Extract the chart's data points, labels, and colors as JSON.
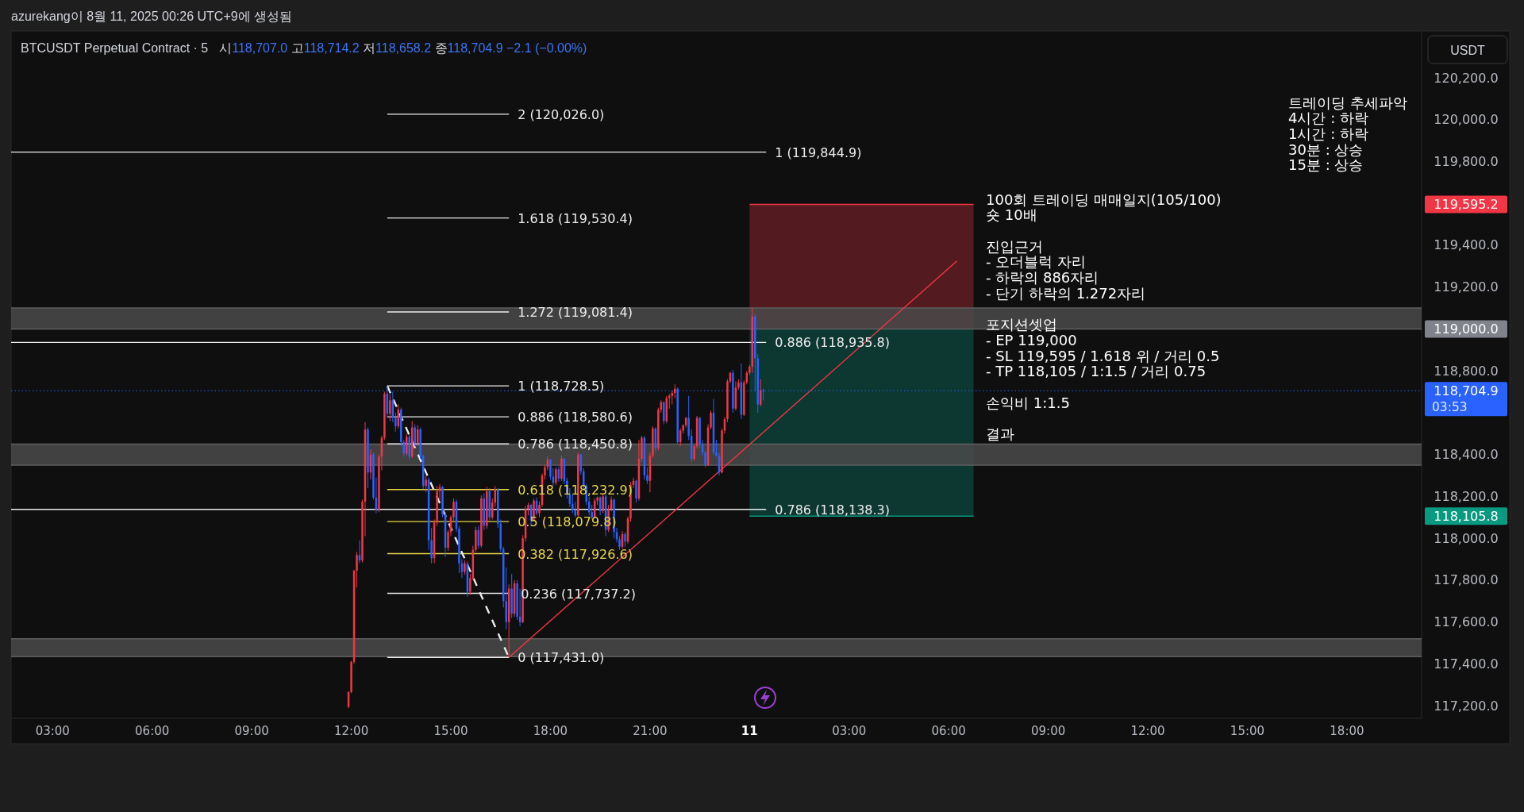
{
  "chart_data": {
    "type": "candlestick",
    "title": "BTCUSDT Perpetual Contract · 5",
    "subtitle": "시118,707.0 고118,714.2 저118,658.2 종118,704.9 −2.1 (−0.00%)",
    "ylabel": "USDT",
    "x": [
      "2025-08-10T11:55",
      "2025-08-10T12:00",
      "2025-08-10T12:05",
      "2025-08-10T12:10",
      "2025-08-10T12:15",
      "2025-08-10T12:20",
      "2025-08-10T12:25",
      "2025-08-10T12:30",
      "2025-08-10T12:35",
      "2025-08-10T12:40",
      "2025-08-10T12:45",
      "2025-08-10T12:50",
      "2025-08-10T12:55",
      "2025-08-10T13:00",
      "2025-08-10T13:05",
      "2025-08-10T13:10",
      "2025-08-10T13:15",
      "2025-08-10T13:20",
      "2025-08-10T13:25",
      "2025-08-10T13:30",
      "2025-08-10T13:35",
      "2025-08-10T13:40",
      "2025-08-10T13:45",
      "2025-08-10T13:50",
      "2025-08-10T13:55",
      "2025-08-10T14:00",
      "2025-08-10T14:05",
      "2025-08-10T14:10",
      "2025-08-10T14:15",
      "2025-08-10T14:20",
      "2025-08-10T14:25",
      "2025-08-10T14:30",
      "2025-08-10T14:35",
      "2025-08-10T14:40",
      "2025-08-10T14:45",
      "2025-08-10T14:50",
      "2025-08-10T14:55",
      "2025-08-10T15:00",
      "2025-08-10T15:05",
      "2025-08-10T15:10",
      "2025-08-10T15:15",
      "2025-08-10T15:20",
      "2025-08-10T15:25",
      "2025-08-10T15:30",
      "2025-08-10T15:35",
      "2025-08-10T15:40",
      "2025-08-10T15:45",
      "2025-08-10T15:50",
      "2025-08-10T15:55",
      "2025-08-10T16:00",
      "2025-08-10T16:05",
      "2025-08-10T16:10",
      "2025-08-10T16:15",
      "2025-08-10T16:20",
      "2025-08-10T16:25",
      "2025-08-10T16:30",
      "2025-08-10T16:35",
      "2025-08-10T16:40",
      "2025-08-10T16:45",
      "2025-08-10T16:50",
      "2025-08-10T16:55",
      "2025-08-10T17:00",
      "2025-08-10T17:05",
      "2025-08-10T17:10",
      "2025-08-10T17:15",
      "2025-08-10T17:20",
      "2025-08-10T17:25",
      "2025-08-10T17:30",
      "2025-08-10T17:35",
      "2025-08-10T17:40",
      "2025-08-10T17:45",
      "2025-08-10T17:50",
      "2025-08-10T17:55",
      "2025-08-10T18:00",
      "2025-08-10T18:05",
      "2025-08-10T18:10",
      "2025-08-10T18:15",
      "2025-08-10T18:20",
      "2025-08-10T18:25",
      "2025-08-10T18:30",
      "2025-08-10T18:35",
      "2025-08-10T18:40",
      "2025-08-10T18:45",
      "2025-08-10T18:50",
      "2025-08-10T18:55",
      "2025-08-10T19:00",
      "2025-08-10T19:05",
      "2025-08-10T19:10",
      "2025-08-10T19:15",
      "2025-08-10T19:20",
      "2025-08-10T19:25",
      "2025-08-10T19:30",
      "2025-08-10T19:35",
      "2025-08-10T19:40",
      "2025-08-10T19:45",
      "2025-08-10T19:50",
      "2025-08-10T19:55",
      "2025-08-10T20:00",
      "2025-08-10T20:05",
      "2025-08-10T20:10",
      "2025-08-10T20:15",
      "2025-08-10T20:20",
      "2025-08-10T20:25",
      "2025-08-10T20:30",
      "2025-08-10T20:35",
      "2025-08-10T20:40",
      "2025-08-10T20:45",
      "2025-08-10T20:50",
      "2025-08-10T20:55",
      "2025-08-10T21:00",
      "2025-08-10T21:05",
      "2025-08-10T21:10",
      "2025-08-10T21:15",
      "2025-08-10T21:20",
      "2025-08-10T21:25",
      "2025-08-10T21:30",
      "2025-08-10T21:35",
      "2025-08-10T21:40",
      "2025-08-10T21:45",
      "2025-08-10T21:50",
      "2025-08-10T21:55",
      "2025-08-10T22:00",
      "2025-08-10T22:05",
      "2025-08-10T22:10",
      "2025-08-10T22:15",
      "2025-08-10T22:20",
      "2025-08-10T22:25",
      "2025-08-10T22:30",
      "2025-08-10T22:35",
      "2025-08-10T22:40",
      "2025-08-10T22:45",
      "2025-08-10T22:50",
      "2025-08-10T22:55",
      "2025-08-10T23:00",
      "2025-08-10T23:05",
      "2025-08-10T23:10",
      "2025-08-10T23:15",
      "2025-08-10T23:20",
      "2025-08-10T23:25",
      "2025-08-10T23:30",
      "2025-08-10T23:35",
      "2025-08-10T23:40",
      "2025-08-10T23:45",
      "2025-08-10T23:50",
      "2025-08-10T23:55",
      "2025-08-11T00:00",
      "2025-08-11T00:05",
      "2025-08-11T00:10",
      "2025-08-11T00:15",
      "2025-08-11T00:20",
      "2025-08-11T00:25"
    ],
    "ohlc": [
      [
        117195,
        117270,
        117188,
        117265
      ],
      [
        117265,
        117415,
        117260,
        117410
      ],
      [
        117410,
        117850,
        117400,
        117845
      ],
      [
        117845,
        117935,
        117765,
        117920
      ],
      [
        117920,
        117990,
        117880,
        117895
      ],
      [
        117895,
        118185,
        117885,
        118175
      ],
      [
        118175,
        118555,
        118010,
        118520
      ],
      [
        118520,
        118530,
        118240,
        118315
      ],
      [
        118315,
        118425,
        118280,
        118400
      ],
      [
        118400,
        118410,
        118185,
        118195
      ],
      [
        118195,
        118290,
        118120,
        118135
      ],
      [
        118135,
        118400,
        118125,
        118390
      ],
      [
        118390,
        118490,
        118325,
        118480
      ],
      [
        118480,
        118700,
        118470,
        118690
      ],
      [
        118690,
        118728.5,
        118575,
        118595
      ],
      [
        118595,
        118690,
        118560,
        118660
      ],
      [
        118660,
        118700,
        118555,
        118575
      ],
      [
        118575,
        118600,
        118510,
        118535
      ],
      [
        118535,
        118640,
        118525,
        118615
      ],
      [
        118615,
        118625,
        118440,
        118460
      ],
      [
        118460,
        118470,
        118390,
        118405
      ],
      [
        118405,
        118500,
        118395,
        118485
      ],
      [
        118485,
        118495,
        118375,
        118390
      ],
      [
        118390,
        118560,
        118385,
        118530
      ],
      [
        118530,
        118545,
        118440,
        118455
      ],
      [
        118455,
        118540,
        118440,
        118520
      ],
      [
        118520,
        118530,
        118380,
        118395
      ],
      [
        118395,
        118400,
        118235,
        118250
      ],
      [
        118250,
        118300,
        118220,
        118280
      ],
      [
        118280,
        118290,
        117945,
        117990
      ],
      [
        117990,
        118050,
        117880,
        117905
      ],
      [
        117905,
        118090,
        117880,
        118075
      ],
      [
        118075,
        118250,
        118060,
        118225
      ],
      [
        118225,
        118260,
        118180,
        118245
      ],
      [
        118245,
        118250,
        118100,
        118115
      ],
      [
        118115,
        118125,
        117910,
        117955
      ],
      [
        117955,
        118040,
        117940,
        118030
      ],
      [
        118030,
        118110,
        118010,
        118100
      ],
      [
        118100,
        118190,
        118085,
        118175
      ],
      [
        118175,
        118185,
        118030,
        118045
      ],
      [
        118045,
        118060,
        117835,
        117880
      ],
      [
        117880,
        117900,
        117810,
        117840
      ],
      [
        117840,
        117895,
        117825,
        117880
      ],
      [
        117880,
        117890,
        117720,
        117745
      ],
      [
        117745,
        117830,
        117730,
        117810
      ],
      [
        117810,
        117965,
        117800,
        117945
      ],
      [
        117945,
        118055,
        117935,
        118040
      ],
      [
        118040,
        118060,
        117950,
        117965
      ],
      [
        117965,
        118205,
        117955,
        118190
      ],
      [
        118190,
        118215,
        118040,
        118060
      ],
      [
        118060,
        118245,
        118045,
        118225
      ],
      [
        118225,
        118240,
        118085,
        118100
      ],
      [
        118100,
        118190,
        118090,
        118170
      ],
      [
        118170,
        118250,
        118150,
        118235
      ],
      [
        118235,
        118240,
        118050,
        118070
      ],
      [
        118070,
        118090,
        117935,
        117950
      ],
      [
        117950,
        117960,
        117670,
        117700
      ],
      [
        117700,
        117860,
        117565,
        117600
      ],
      [
        117600,
        117780,
        117431,
        117760
      ],
      [
        117760,
        117830,
        117620,
        117640
      ],
      [
        117640,
        117800,
        117625,
        117785
      ],
      [
        117785,
        117800,
        117610,
        117625
      ],
      [
        117625,
        117760,
        117580,
        117600
      ],
      [
        117600,
        118015,
        117595,
        118000
      ],
      [
        118000,
        118155,
        117985,
        118140
      ],
      [
        118140,
        118170,
        118110,
        118160
      ],
      [
        118160,
        118165,
        118060,
        118085
      ],
      [
        118085,
        118190,
        118080,
        118180
      ],
      [
        118180,
        118195,
        118110,
        118120
      ],
      [
        118120,
        118175,
        118100,
        118160
      ],
      [
        118160,
        118310,
        118150,
        118300
      ],
      [
        118300,
        118350,
        118280,
        118340
      ],
      [
        118340,
        118390,
        118325,
        118375
      ],
      [
        118375,
        118380,
        118280,
        118295
      ],
      [
        118295,
        118335,
        118250,
        118265
      ],
      [
        118265,
        118340,
        118255,
        118330
      ],
      [
        118330,
        118345,
        118270,
        118285
      ],
      [
        118285,
        118395,
        118275,
        118380
      ],
      [
        118380,
        118385,
        118260,
        118275
      ],
      [
        118275,
        118290,
        118190,
        118210
      ],
      [
        118210,
        118240,
        118150,
        118165
      ],
      [
        118165,
        118210,
        118120,
        118135
      ],
      [
        118135,
        118175,
        118100,
        118110
      ],
      [
        118110,
        118410,
        118100,
        118400
      ],
      [
        118400,
        118405,
        118305,
        118320
      ],
      [
        118320,
        118335,
        118235,
        118250
      ],
      [
        118250,
        118260,
        118160,
        118175
      ],
      [
        118175,
        118200,
        118110,
        118125
      ],
      [
        118125,
        118160,
        118090,
        118100
      ],
      [
        118100,
        118190,
        118095,
        118180
      ],
      [
        118180,
        118200,
        118160,
        118195
      ],
      [
        118195,
        118200,
        118110,
        118130
      ],
      [
        118130,
        118215,
        118120,
        118200
      ],
      [
        118200,
        118210,
        118010,
        118040
      ],
      [
        118040,
        118160,
        118030,
        118140
      ],
      [
        118140,
        118200,
        118130,
        118185
      ],
      [
        118185,
        118190,
        118000,
        118030
      ],
      [
        118030,
        118050,
        117980,
        117995
      ],
      [
        117995,
        118010,
        117945,
        117960
      ],
      [
        117960,
        118035,
        117950,
        118020
      ],
      [
        118020,
        118030,
        117960,
        117985
      ],
      [
        117985,
        118105,
        117975,
        118095
      ],
      [
        118095,
        118270,
        118080,
        118255
      ],
      [
        118255,
        118290,
        118240,
        118275
      ],
      [
        118275,
        118280,
        118170,
        118190
      ],
      [
        118190,
        118470,
        118180,
        118380
      ],
      [
        118380,
        118490,
        118365,
        118480
      ],
      [
        118480,
        118490,
        118280,
        118300
      ],
      [
        118300,
        118340,
        118260,
        118275
      ],
      [
        118275,
        118410,
        118220,
        118395
      ],
      [
        118395,
        118535,
        118385,
        118525
      ],
      [
        118525,
        118530,
        118410,
        118430
      ],
      [
        118430,
        118625,
        118420,
        118615
      ],
      [
        118615,
        118660,
        118600,
        118650
      ],
      [
        118650,
        118655,
        118545,
        118560
      ],
      [
        118560,
        118680,
        118550,
        118670
      ],
      [
        118670,
        118690,
        118620,
        118680
      ],
      [
        118680,
        118705,
        118640,
        118695
      ],
      [
        118695,
        118735,
        118670,
        118715
      ],
      [
        118715,
        118720,
        118450,
        118460
      ],
      [
        118460,
        118525,
        118440,
        118515
      ],
      [
        118515,
        118545,
        118500,
        118540
      ],
      [
        118540,
        118580,
        118530,
        118575
      ],
      [
        118575,
        118680,
        118470,
        118490
      ],
      [
        118490,
        118520,
        118365,
        118380
      ],
      [
        118380,
        118445,
        118370,
        118440
      ],
      [
        118440,
        118585,
        118430,
        118575
      ],
      [
        118575,
        118580,
        118430,
        118450
      ],
      [
        118450,
        118470,
        118395,
        118410
      ],
      [
        118410,
        118420,
        118340,
        118350
      ],
      [
        118350,
        118545,
        118345,
        118530
      ],
      [
        118530,
        118610,
        118520,
        118600
      ],
      [
        118600,
        118665,
        118400,
        118410
      ],
      [
        118410,
        118470,
        118390,
        118395
      ],
      [
        118395,
        118410,
        118300,
        118315
      ],
      [
        118315,
        118525,
        118310,
        118515
      ],
      [
        118515,
        118580,
        118500,
        118570
      ],
      [
        118570,
        118760,
        118555,
        118750
      ],
      [
        118750,
        118795,
        118740,
        118790
      ],
      [
        118790,
        118805,
        118600,
        118620
      ],
      [
        118620,
        118750,
        118610,
        118720
      ],
      [
        118720,
        118760,
        118710,
        118745
      ],
      [
        118745,
        118835,
        118570,
        118590
      ],
      [
        118590,
        118755,
        118585,
        118745
      ],
      [
        118745,
        118800,
        118735,
        118790
      ],
      [
        118790,
        118830,
        118780,
        118820
      ],
      [
        118820,
        119100,
        118790,
        119060
      ],
      [
        119060,
        119075,
        118705,
        118860
      ],
      [
        118860,
        118880,
        118600,
        118640
      ],
      [
        118640,
        118760,
        118630,
        118707
      ],
      [
        118707.0,
        118714.2,
        118658.2,
        118704.9
      ]
    ],
    "colors": [
      "#f23645",
      "#f23645",
      "#f23645",
      "#f23645",
      "#2962ff",
      "#f23645",
      "#f23645",
      "#2962ff",
      "#f23645",
      "#2962ff",
      "#2962ff",
      "#f23645",
      "#f23645",
      "#f23645",
      "#2962ff",
      "#f23645",
      "#2962ff",
      "#2962ff",
      "#f23645",
      "#2962ff",
      "#2962ff",
      "#f23645",
      "#2962ff",
      "#f23645",
      "#2962ff",
      "#f23645",
      "#2962ff",
      "#2962ff",
      "#f23645",
      "#2962ff",
      "#2962ff",
      "#f23645",
      "#f23645",
      "#f23645",
      "#2962ff",
      "#2962ff",
      "#f23645",
      "#f23645",
      "#f23645",
      "#2962ff",
      "#2962ff",
      "#2962ff",
      "#f23645",
      "#2962ff",
      "#f23645",
      "#f23645",
      "#f23645",
      "#2962ff",
      "#f23645",
      "#2962ff",
      "#f23645",
      "#2962ff",
      "#f23645",
      "#f23645",
      "#2962ff",
      "#2962ff",
      "#2962ff",
      "#2962ff",
      "#f23645",
      "#2962ff",
      "#f23645",
      "#2962ff",
      "#2962ff",
      "#f23645",
      "#f23645",
      "#f23645",
      "#2962ff",
      "#f23645",
      "#2962ff",
      "#f23645",
      "#f23645",
      "#f23645",
      "#f23645",
      "#2962ff",
      "#2962ff",
      "#f23645",
      "#2962ff",
      "#f23645",
      "#2962ff",
      "#2962ff",
      "#2962ff",
      "#2962ff",
      "#2962ff",
      "#f23645",
      "#2962ff",
      "#2962ff",
      "#2962ff",
      "#2962ff",
      "#2962ff",
      "#f23645",
      "#f23645",
      "#2962ff",
      "#f23645",
      "#2962ff",
      "#f23645",
      "#f23645",
      "#2962ff",
      "#2962ff",
      "#2962ff",
      "#f23645",
      "#2962ff",
      "#f23645",
      "#f23645",
      "#f23645",
      "#2962ff",
      "#f23645",
      "#f23645",
      "#2962ff",
      "#2962ff",
      "#f23645",
      "#f23645",
      "#2962ff",
      "#f23645",
      "#f23645",
      "#2962ff",
      "#f23645",
      "#f23645",
      "#f23645",
      "#f23645",
      "#2962ff",
      "#f23645",
      "#f23645",
      "#f23645",
      "#2962ff",
      "#2962ff",
      "#f23645",
      "#f23645",
      "#2962ff",
      "#2962ff",
      "#2962ff",
      "#f23645",
      "#f23645",
      "#2962ff",
      "#2962ff",
      "#2962ff",
      "#f23645",
      "#f23645",
      "#f23645",
      "#f23645",
      "#2962ff",
      "#f23645",
      "#f23645",
      "#2962ff",
      "#f23645",
      "#f23645",
      "#f23645",
      "#f23645",
      "#2962ff",
      "#2962ff",
      "#f23645",
      "#2962ff"
    ],
    "series": [
      {
        "type": "line",
        "color": "#f23645",
        "x": [
          "2025-08-11T00:00",
          "2025-08-11T06:45"
        ],
        "values": [
          119595.2,
          119595.2
        ],
        "lower": [
          119000,
          119000
        ],
        "upper": [
          119595.2,
          119595.2
        ]
      },
      {
        "type": "line",
        "color": "#089981",
        "x": [
          "2025-08-11T00:00",
          "2025-08-11T06:45"
        ],
        "values": [
          118105.8,
          118105.8
        ],
        "lower": [
          118105.8,
          118105.8
        ],
        "upper": [
          119000,
          119000
        ]
      },
      {
        "type": "line",
        "name": "1 (119,844.9)",
        "color": "#ececec",
        "x": [
          "2025-08-10T01:45",
          "2025-08-11T00:30"
        ],
        "values": [
          119844.9,
          119844.9
        ]
      },
      {
        "type": "line",
        "name": "0.886 (118,935.8)",
        "color": "#ececec",
        "x": [
          "2025-08-10T01:45",
          "2025-08-11T00:30"
        ],
        "values": [
          118935.8,
          118935.8
        ]
      },
      {
        "type": "line",
        "name": "0.786 (118,138.3)",
        "color": "#ececec",
        "x": [
          "2025-08-10T01:45",
          "2025-08-11T00:30"
        ],
        "values": [
          118138.3,
          118138.3
        ]
      },
      {
        "type": "line",
        "name": "2 (120,026.0)",
        "color": "#ececec",
        "x": [
          "2025-08-10T13:05",
          "2025-08-10T16:45"
        ],
        "values": [
          120026.0,
          120026.0
        ]
      },
      {
        "type": "line",
        "name": "1.618 (119,530.4)",
        "color": "#ececec",
        "x": [
          "2025-08-10T13:05",
          "2025-08-10T16:45"
        ],
        "values": [
          119530.4,
          119530.4
        ]
      },
      {
        "type": "line",
        "name": "1.272 (119,081.4)",
        "color": "#ececec",
        "x": [
          "2025-08-10T13:05",
          "2025-08-10T16:45"
        ],
        "values": [
          119081.4,
          119081.4
        ]
      },
      {
        "type": "line",
        "name": "1 (118,728.5)",
        "color": "#ececec",
        "x": [
          "2025-08-10T13:05",
          "2025-08-10T16:45"
        ],
        "values": [
          118728.5,
          118728.5
        ]
      },
      {
        "type": "line",
        "name": "0.886 (118,580.6)",
        "color": "#ececec",
        "x": [
          "2025-08-10T13:05",
          "2025-08-10T16:45"
        ],
        "values": [
          118580.6,
          118580.6
        ]
      },
      {
        "type": "line",
        "name": "0.786 (118,450.8)",
        "color": "#ececec",
        "x": [
          "2025-08-10T13:05",
          "2025-08-10T16:45"
        ],
        "values": [
          118450.8,
          118450.8
        ]
      },
      {
        "type": "line",
        "name": "0.618 (118,232.9)",
        "color": "#e9d648",
        "x": [
          "2025-08-10T13:05",
          "2025-08-10T16:45"
        ],
        "values": [
          118232.9,
          118232.9
        ]
      },
      {
        "type": "line",
        "name": "0.5 (118,079.8)",
        "color": "#e9d648",
        "x": [
          "2025-08-10T13:05",
          "2025-08-10T16:45"
        ],
        "values": [
          118079.8,
          118079.8
        ]
      },
      {
        "type": "line",
        "name": "0.382 (117,926.6)",
        "color": "#e9d648",
        "x": [
          "2025-08-10T13:05",
          "2025-08-10T16:45"
        ],
        "values": [
          117926.6,
          117926.6
        ]
      },
      {
        "type": "line",
        "name": "0.236 (117,737.2)",
        "color": "#ececec",
        "x": [
          "2025-08-10T13:05",
          "2025-08-10T16:45"
        ],
        "values": [
          117737.2,
          117737.2
        ]
      },
      {
        "type": "line",
        "name": "0 (117,431.0)",
        "color": "#ececec",
        "x": [
          "2025-08-10T13:05",
          "2025-08-10T16:45"
        ],
        "values": [
          117431.0,
          117431.0
        ]
      },
      {
        "type": "line",
        "color": "#ececec",
        "line_style": "dashed",
        "x": [
          "2025-08-10T13:05",
          "2025-08-10T16:45"
        ],
        "values": [
          118728.5,
          117431.0
        ]
      },
      {
        "type": "line",
        "color": "#f23645",
        "x": [
          "2025-08-10T16:45",
          "2025-08-11T06:15"
        ],
        "values": [
          117431.0,
          119325
        ]
      }
    ],
    "bands": [
      {
        "axis": "y",
        "from": 119000,
        "to": 119100,
        "color": "#4a4a4a"
      },
      {
        "axis": "y",
        "from": 118350,
        "to": 118450,
        "color": "#4a4a4a"
      },
      {
        "axis": "y",
        "from": 117435,
        "to": 117520,
        "color": "#4a4a4a"
      }
    ],
    "ref_lines": [
      {
        "axis": "y",
        "value": 118704.9,
        "label": "118,704.9",
        "color": "#2962ff",
        "line_style": "dotted"
      }
    ],
    "xlim": [
      "2025-08-10T01:45",
      "2025-08-11T20:15"
    ],
    "xticks": [
      {
        "value": "2025-08-10T03:00",
        "label": "03:00"
      },
      {
        "value": "2025-08-10T06:00",
        "label": "06:00"
      },
      {
        "value": "2025-08-10T09:00",
        "label": "09:00"
      },
      {
        "value": "2025-08-10T12:00",
        "label": "12:00"
      },
      {
        "value": "2025-08-10T15:00",
        "label": "15:00"
      },
      {
        "value": "2025-08-10T18:00",
        "label": "18:00"
      },
      {
        "value": "2025-08-10T21:00",
        "label": "21:00"
      },
      {
        "value": "2025-08-11T00:00",
        "label": "11"
      },
      {
        "value": "2025-08-11T03:00",
        "label": "03:00"
      },
      {
        "value": "2025-08-11T06:00",
        "label": "06:00"
      },
      {
        "value": "2025-08-11T09:00",
        "label": "09:00"
      },
      {
        "value": "2025-08-11T12:00",
        "label": "12:00"
      },
      {
        "value": "2025-08-11T15:00",
        "label": "15:00"
      },
      {
        "value": "2025-08-11T18:00",
        "label": "18:00"
      }
    ],
    "ylim": [
      117140,
      120420
    ],
    "yticks": [
      {
        "value": 117200,
        "label": "117,200.0"
      },
      {
        "value": 117400,
        "label": "117,400.0"
      },
      {
        "value": 117600,
        "label": "117,600.0"
      },
      {
        "value": 117800,
        "label": "117,800.0"
      },
      {
        "value": 118000,
        "label": "118,000.0"
      },
      {
        "value": 118105.8,
        "label": "118,105.8"
      },
      {
        "value": 118200,
        "label": "118,200.0"
      },
      {
        "value": 118400,
        "label": "118,400.0"
      },
      {
        "value": 118800,
        "label": "118,800.0"
      },
      {
        "value": 119000,
        "label": "119,000.0"
      },
      {
        "value": 119200,
        "label": "119,200.0"
      },
      {
        "value": 119400,
        "label": "119,400.0"
      },
      {
        "value": 119595.2,
        "label": "119,595.2"
      },
      {
        "value": 119800,
        "label": "119,800.0"
      },
      {
        "value": 120000,
        "label": "120,000.0"
      },
      {
        "value": 120200,
        "label": "120,200.0"
      }
    ],
    "annotations": [
      "azurekang이 8월 11, 2025 00:26 UTC+9에 생성됨",
      "트레이딩 추세파악\n4시간 : 하락\n1시간 : 하락\n30분 : 상승\n15분 : 상승",
      "100회 트레이딩 매매일지(105/100)\n숏 10배\n\n진입근거\n- 오더블럭 자리\n- 하락의 886자리\n- 단기 하락의 1.272자리\n\n포지션셋업\n- EP 119,000\n- SL 119,595 / 1.618 위 / 거리 0.5\n- TP 118,105 / 1:1.5 / 거리 0.75\n\n손익비 1:1.5\n\n결과",
      "03:53"
    ]
  }
}
